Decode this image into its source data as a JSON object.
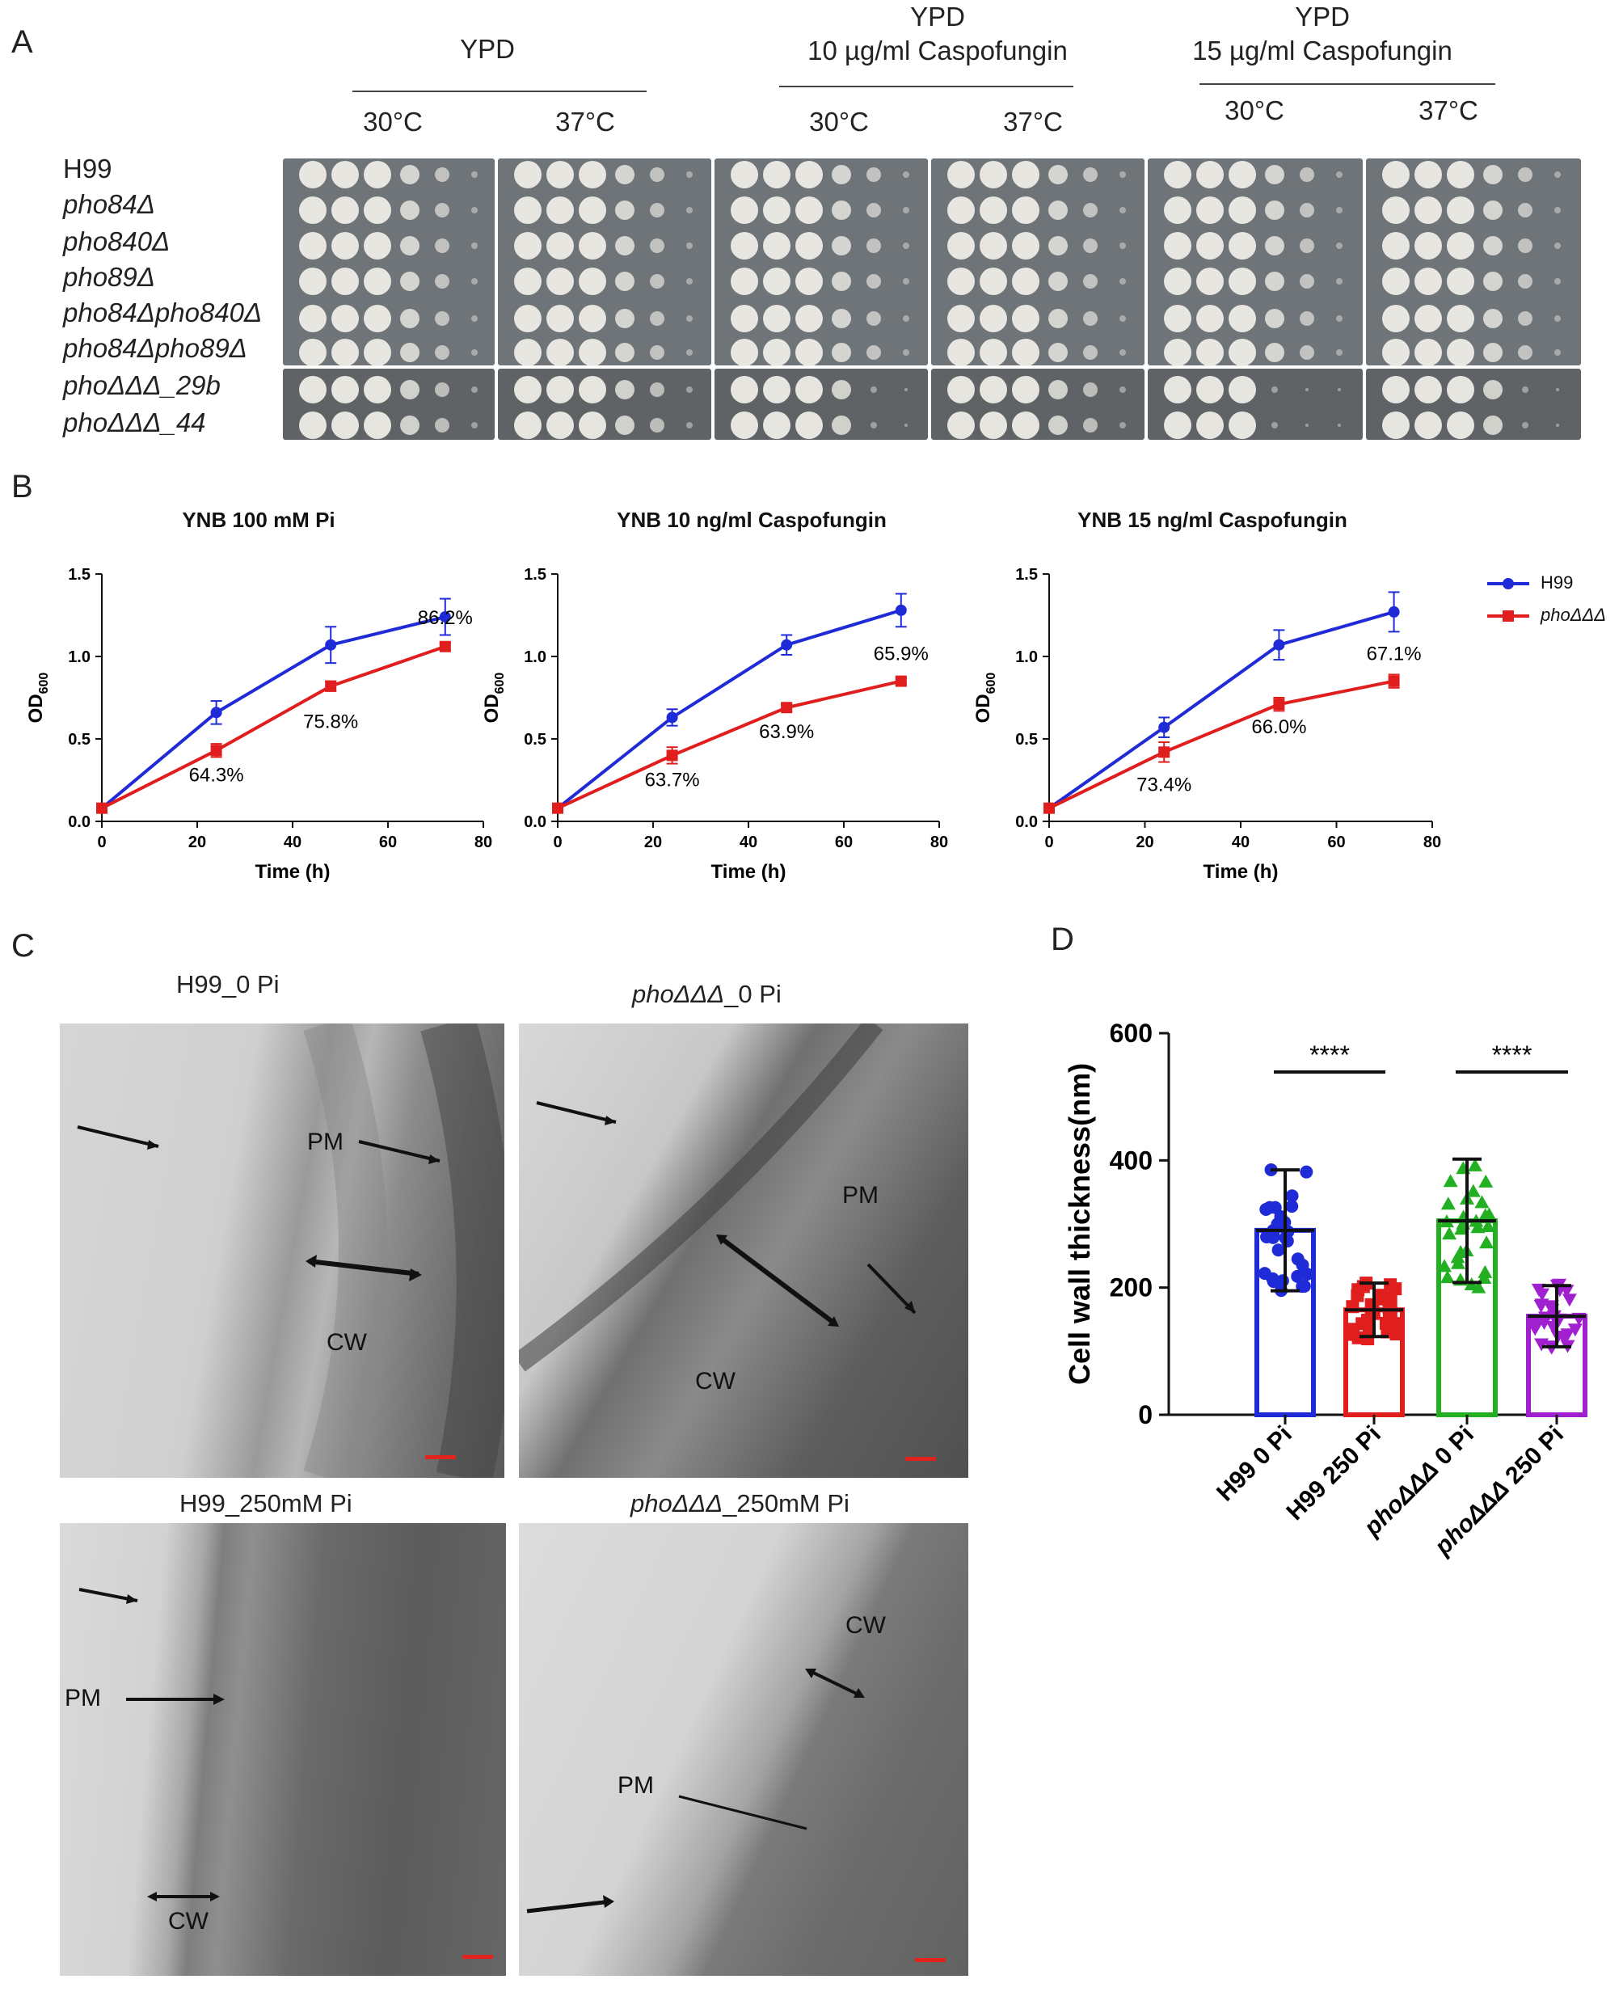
{
  "panels": {
    "a": "A",
    "b": "B",
    "c": "C",
    "d": "D"
  },
  "panel_a": {
    "conditions": [
      {
        "line1": "YPD",
        "line2": ""
      },
      {
        "line1": "YPD",
        "line2": "10 µg/ml Caspofungin"
      },
      {
        "line1": "YPD",
        "line2": "15 µg/ml Caspofungin"
      }
    ],
    "temperatures": [
      "30°C",
      "37°C",
      "30°C",
      "37°C",
      "30°C",
      "37°C"
    ],
    "strains": [
      "H99",
      "pho84Δ",
      "pho840Δ",
      "pho89Δ",
      "pho84Δpho840Δ",
      "pho84Δpho89Δ",
      "phoΔΔΔ_29b",
      "phoΔΔΔ_44"
    ]
  },
  "panel_b": {
    "legend": [
      {
        "name": "H99",
        "color": "#1f2bd6"
      },
      {
        "name": "phoΔΔΔ",
        "color": "#e01e1e"
      }
    ],
    "ylabel_main": "OD",
    "ylabel_sub": "600",
    "xlabel": "Time (h)"
  },
  "chart_data": [
    {
      "type": "line",
      "title": "YNB 100 mM Pi",
      "xlabel": "Time (h)",
      "ylabel": "OD600",
      "xlim": [
        0,
        80
      ],
      "ylim": [
        0,
        1.5
      ],
      "xticks": [
        0,
        20,
        40,
        60,
        80
      ],
      "yticks": [
        0.0,
        0.5,
        1.0,
        1.5
      ],
      "x": [
        0,
        24,
        48,
        72
      ],
      "series": [
        {
          "name": "H99",
          "values": [
            0.08,
            0.66,
            1.07,
            1.24
          ],
          "errors": [
            0.01,
            0.07,
            0.11,
            0.11
          ]
        },
        {
          "name": "phoΔΔΔ",
          "values": [
            0.08,
            0.43,
            0.82,
            1.06
          ],
          "errors": [
            0.01,
            0.04,
            0.03,
            0.02
          ]
        }
      ],
      "annotations": [
        "64.3%",
        "75.8%",
        "86.2%"
      ]
    },
    {
      "type": "line",
      "title": "YNB 10 ng/ml Caspofungin",
      "xlabel": "Time (h)",
      "ylabel": "OD600",
      "xlim": [
        0,
        80
      ],
      "ylim": [
        0,
        1.5
      ],
      "xticks": [
        0,
        20,
        40,
        60,
        80
      ],
      "yticks": [
        0.0,
        0.5,
        1.0,
        1.5
      ],
      "x": [
        0,
        24,
        48,
        72
      ],
      "series": [
        {
          "name": "H99",
          "values": [
            0.08,
            0.63,
            1.07,
            1.28
          ],
          "errors": [
            0.01,
            0.05,
            0.06,
            0.1
          ]
        },
        {
          "name": "phoΔΔΔ",
          "values": [
            0.08,
            0.4,
            0.69,
            0.85
          ],
          "errors": [
            0.01,
            0.05,
            0.02,
            0.02
          ]
        }
      ],
      "annotations": [
        "63.7%",
        "63.9%",
        "65.9%"
      ]
    },
    {
      "type": "line",
      "title": "YNB 15 ng/ml Caspofungin",
      "xlabel": "Time (h)",
      "ylabel": "OD600",
      "xlim": [
        0,
        80
      ],
      "ylim": [
        0,
        1.5
      ],
      "xticks": [
        0,
        20,
        40,
        60,
        80
      ],
      "yticks": [
        0.0,
        0.5,
        1.0,
        1.5
      ],
      "x": [
        0,
        24,
        48,
        72
      ],
      "series": [
        {
          "name": "H99",
          "values": [
            0.08,
            0.57,
            1.07,
            1.27
          ],
          "errors": [
            0.01,
            0.06,
            0.09,
            0.12
          ]
        },
        {
          "name": "phoΔΔΔ",
          "values": [
            0.08,
            0.42,
            0.71,
            0.85
          ],
          "errors": [
            0.01,
            0.06,
            0.04,
            0.04
          ]
        }
      ],
      "annotations": [
        "73.4%",
        "66.0%",
        "67.1%"
      ]
    },
    {
      "type": "bar",
      "title": "",
      "xlabel": "",
      "ylabel": "Cell wall thickness(nm)",
      "ylim": [
        0,
        600
      ],
      "yticks": [
        0,
        200,
        400,
        600
      ],
      "categories": [
        "H99 0 Pi",
        "H99 250 Pi",
        "phoΔΔΔ 0 Pi",
        "phoΔΔΔ 250 Pi"
      ],
      "values": [
        290,
        165,
        305,
        155
      ],
      "errors": [
        95,
        42,
        97,
        48
      ],
      "colors": [
        "#1f2bd6",
        "#e01e1e",
        "#22b022",
        "#a020d0"
      ],
      "significance": [
        "****",
        "****"
      ]
    }
  ],
  "panel_c": {
    "titles": [
      "H99_0 Pi",
      "_0 Pi",
      "H99_250mM Pi",
      "_250mM Pi"
    ],
    "title_strain": "phoΔΔΔ",
    "labels": {
      "pm": "PM",
      "cw": "CW"
    }
  }
}
